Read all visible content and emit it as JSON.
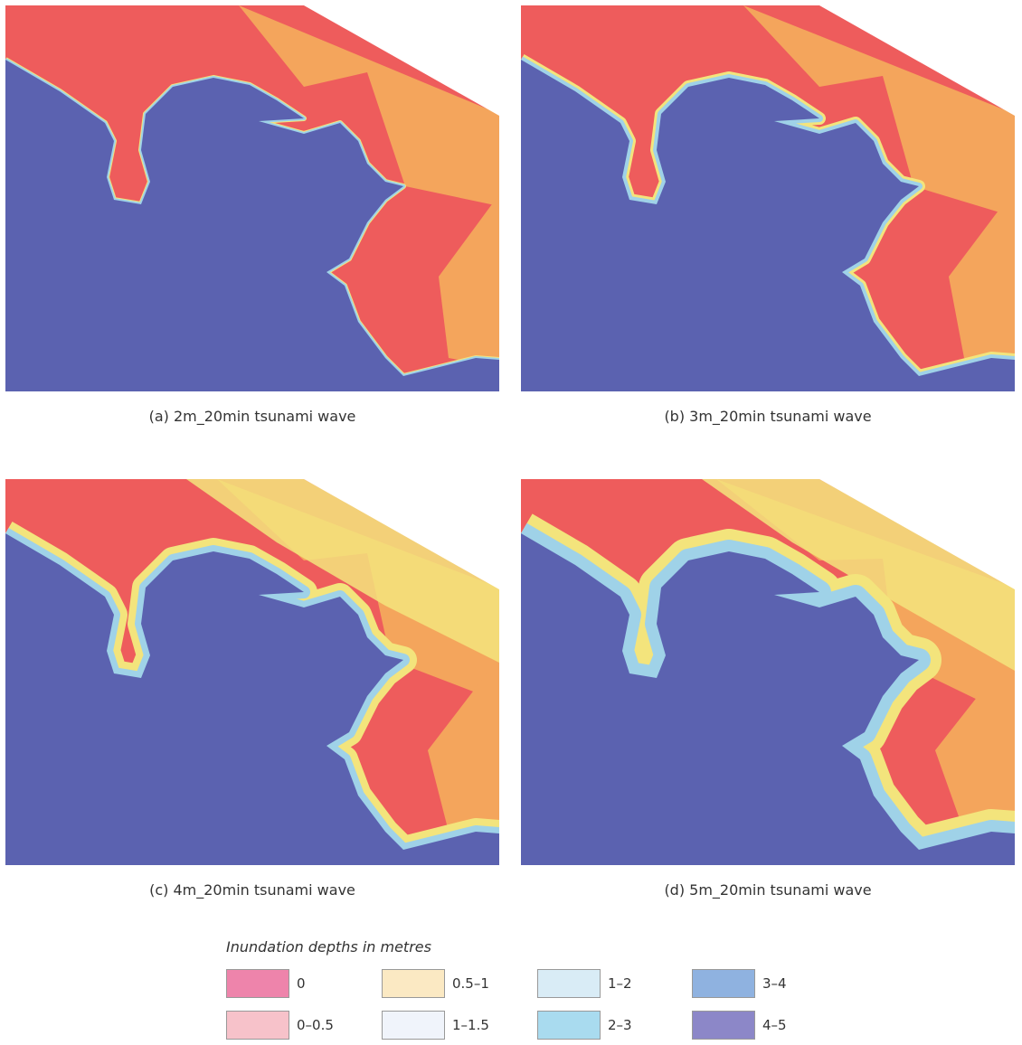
{
  "panels": [
    {
      "caption": "(a) 2m_20min tsunami wave"
    },
    {
      "caption": "(b) 3m_20min tsunami wave"
    },
    {
      "caption": "(c) 4m_20min tsunami wave"
    },
    {
      "caption": "(d) 5m_20min tsunami wave"
    }
  ],
  "legend": {
    "title": "Inundation depths in metres",
    "items": [
      {
        "label": "0",
        "color": "#ee84ab"
      },
      {
        "label": "0–0.5",
        "color": "#f7c2ca"
      },
      {
        "label": "0.5–1",
        "color": "#fbe9c3"
      },
      {
        "label": "1–1.5",
        "color": "#f0f4fb"
      },
      {
        "label": "1–2",
        "color": "#d9ecf6"
      },
      {
        "label": "2–3",
        "color": "#a9dbef"
      },
      {
        "label": "3–4",
        "color": "#8fb2e0"
      },
      {
        "label": "4–5",
        "color": "#8c87c8"
      }
    ]
  }
}
